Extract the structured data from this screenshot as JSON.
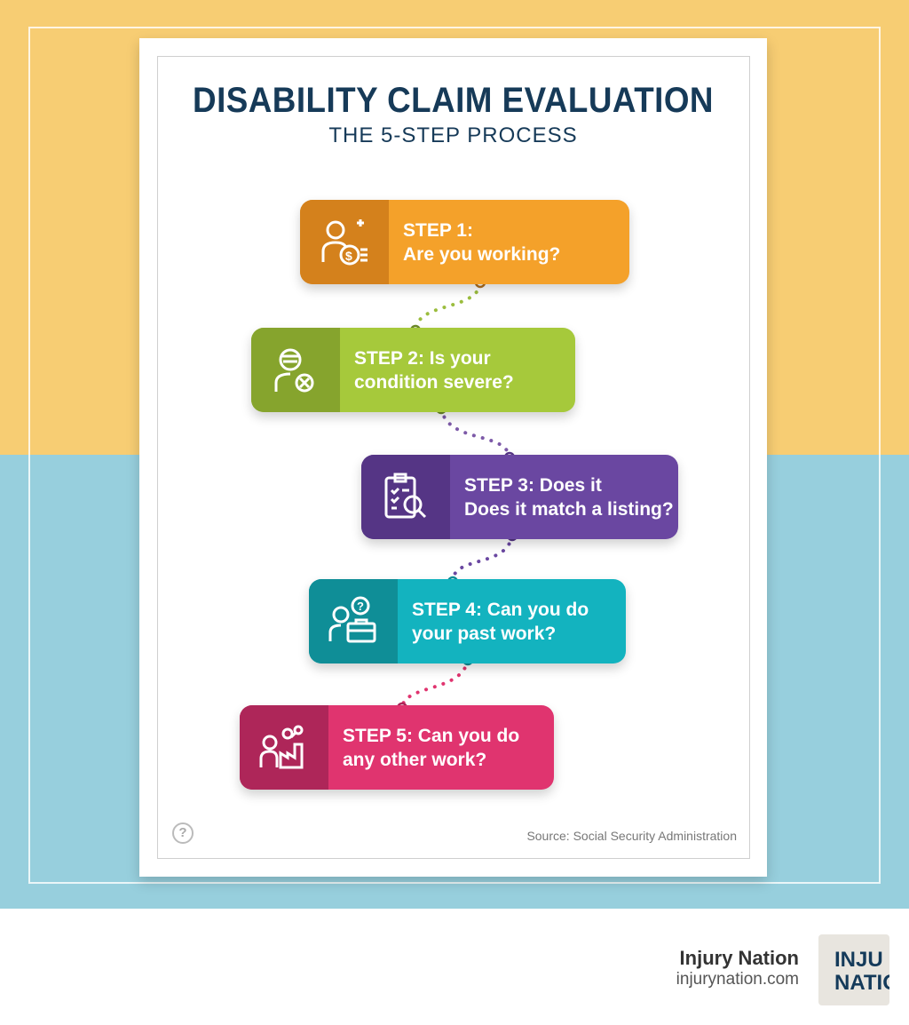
{
  "title": "DISABILITY CLAIM EVALUATION",
  "subtitle": "THE 5-STEP PROCESS",
  "steps": [
    {
      "line1": "STEP 1:",
      "line2": "Are you working?",
      "icon": "worker-money-icon",
      "color": "#f4a12a",
      "dark": "#d4811c"
    },
    {
      "line1": "STEP 2: Is your",
      "line2": "condition severe?",
      "icon": "injured-person-icon",
      "color": "#a6c93b",
      "dark": "#86a42d"
    },
    {
      "line1": "STEP 3: Does it",
      "line2": "Does it match a listing?",
      "icon": "clipboard-search-icon",
      "color": "#6a47a1",
      "dark": "#553585"
    },
    {
      "line1": "STEP 4: Can you do",
      "line2": "your past work?",
      "icon": "person-briefcase-icon",
      "color": "#13b3bf",
      "dark": "#0f8e97"
    },
    {
      "line1": "STEP 5: Can you do",
      "line2": "any other work?",
      "icon": "person-factory-icon",
      "color": "#e0346f",
      "dark": "#ae2659"
    }
  ],
  "source": "Source: Social Security Administration",
  "help_icon": "?",
  "brand": {
    "name": "Injury Nation",
    "url": "injurynation.com",
    "logo_line1": "INJU",
    "logo_line2": "NATIO"
  }
}
